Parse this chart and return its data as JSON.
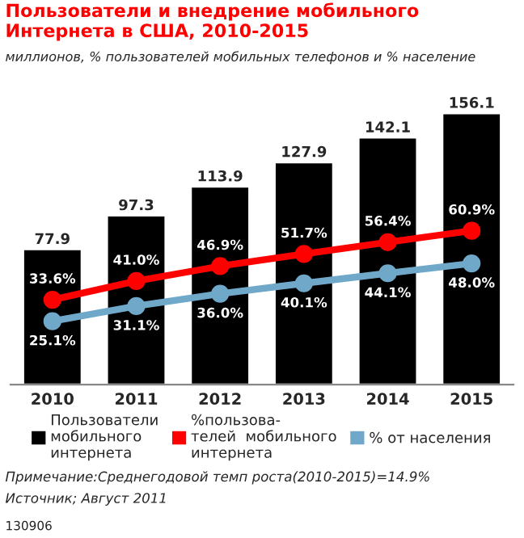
{
  "chart_data": {
    "type": "bar",
    "title": "Пользователи и внедрение мобильного Интернета в США, 2010-2015",
    "subtitle": "миллионов, % пользователей мобильных телефонов и % население",
    "categories": [
      "2010",
      "2011",
      "2012",
      "2013",
      "2014",
      "2015"
    ],
    "series": [
      {
        "name": "Пользователи\nмобильного\nинтернета",
        "color": "#000000",
        "values": [
          77.9,
          97.3,
          113.9,
          127.9,
          142.1,
          156.1
        ],
        "value_labels": [
          "77.9",
          "97.3",
          "113.9",
          "127.9",
          "142.1",
          "156.1"
        ]
      },
      {
        "name": "%пользова-\nтелей  мобильного\nинтернета",
        "type": "line",
        "axis": "y2",
        "color": "#ff0000",
        "marker": "circle",
        "values": [
          33.6,
          41.0,
          46.9,
          51.7,
          56.4,
          60.9
        ],
        "value_labels": [
          "33.6%",
          "41.0%",
          "46.9%",
          "51.7%",
          "56.4%",
          "60.9%"
        ]
      },
      {
        "name": "% от населения",
        "type": "line",
        "axis": "y2",
        "color": "#6fa8c8",
        "marker": "circle",
        "values": [
          25.1,
          31.1,
          36.0,
          40.1,
          44.1,
          48.0
        ],
        "value_labels": [
          "25.1%",
          "31.1%",
          "36.0%",
          "40.1%",
          "44.1%",
          "48.0%"
        ]
      }
    ],
    "tick_labels": "x",
    "grid": false,
    "legend": "bottom",
    "annotations": [
      "Примечание:Среднегодовой темп роста(2010-2015)=14.9%",
      "Источник; Август 2011",
      "130906"
    ]
  }
}
